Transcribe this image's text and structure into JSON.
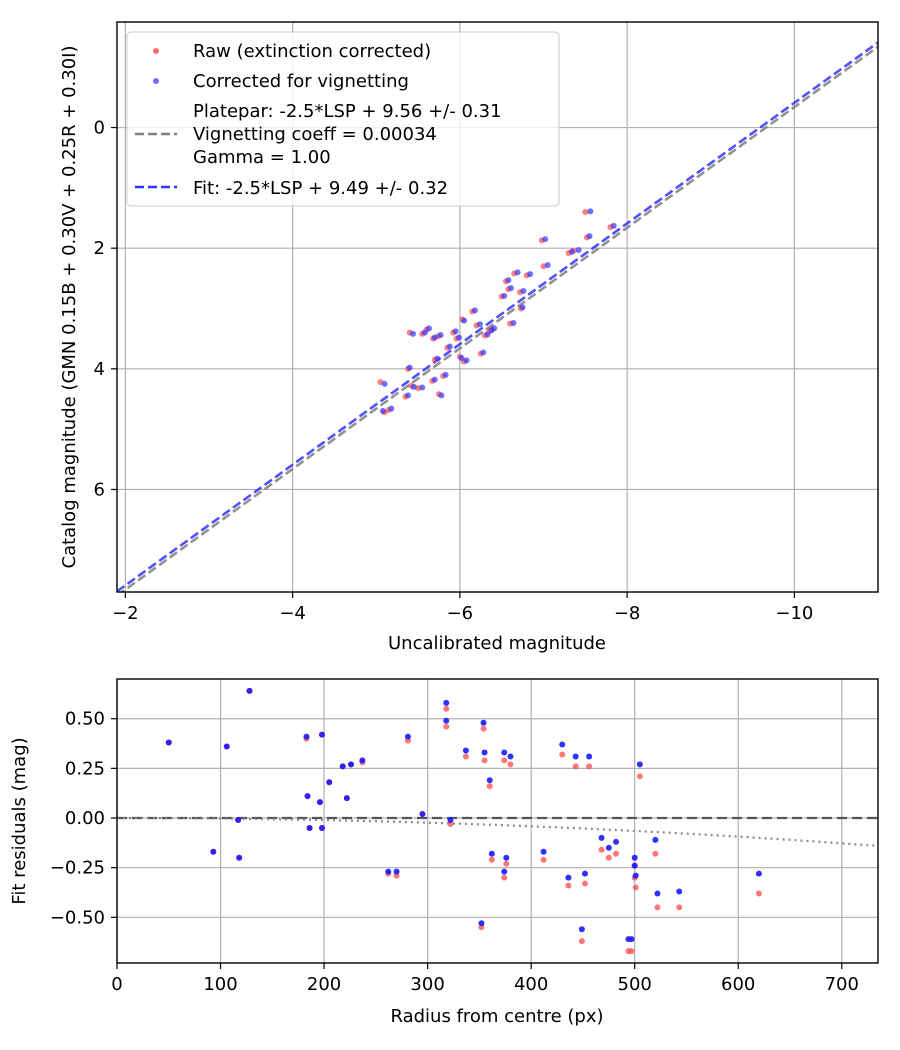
{
  "chart_data": [
    {
      "type": "scatter",
      "xlabel": "Uncalibrated magnitude",
      "ylabel": "Catalog magnitude (GMN 0.15B + 0.30V + 0.25R + 0.30I)",
      "xlim": [
        -1.9,
        -11.0
      ],
      "ylim": [
        7.7,
        -1.75
      ],
      "x_inverted": true,
      "y_inverted": true,
      "xticks": [
        -2,
        -4,
        -6,
        -8,
        -10
      ],
      "xtick_labels": [
        "−2",
        "−4",
        "−6",
        "−8",
        "−10"
      ],
      "yticks": [
        0,
        2,
        4,
        6
      ],
      "ytick_labels": [
        "0",
        "2",
        "4",
        "6"
      ],
      "grid": true,
      "legend_position": "top-left",
      "series": [
        {
          "name": "Raw (extinction corrected)",
          "kind": "scatter",
          "color": "#ff4a4a",
          "points": [
            [
              -5.05,
              4.22
            ],
            [
              -5.15,
              4.68
            ],
            [
              -5.1,
              4.72
            ],
            [
              -5.35,
              4.46
            ],
            [
              -5.42,
              4.28
            ],
            [
              -5.5,
              4.32
            ],
            [
              -5.38,
              4.0
            ],
            [
              -5.4,
              3.4
            ],
            [
              -5.55,
              3.42
            ],
            [
              -5.6,
              3.35
            ],
            [
              -5.68,
              3.5
            ],
            [
              -5.74,
              3.46
            ],
            [
              -5.67,
              4.2
            ],
            [
              -5.75,
              4.42
            ],
            [
              -5.8,
              4.12
            ],
            [
              -5.85,
              3.65
            ],
            [
              -5.7,
              3.85
            ],
            [
              -5.92,
              3.4
            ],
            [
              -5.96,
              3.5
            ],
            [
              -6.0,
              3.8
            ],
            [
              -6.05,
              3.88
            ],
            [
              -6.03,
              3.18
            ],
            [
              -6.15,
              3.05
            ],
            [
              -6.2,
              3.28
            ],
            [
              -6.25,
              3.75
            ],
            [
              -6.3,
              3.45
            ],
            [
              -6.35,
              3.38
            ],
            [
              -6.38,
              3.35
            ],
            [
              -6.5,
              2.8
            ],
            [
              -6.58,
              2.68
            ],
            [
              -6.55,
              2.55
            ],
            [
              -6.6,
              3.25
            ],
            [
              -6.65,
              2.42
            ],
            [
              -6.72,
              2.73
            ],
            [
              -6.73,
              3.0
            ],
            [
              -6.8,
              2.45
            ],
            [
              -6.98,
              1.87
            ],
            [
              -7.0,
              2.3
            ],
            [
              -7.3,
              2.08
            ],
            [
              -7.36,
              2.04
            ],
            [
              -7.5,
              1.4
            ],
            [
              -7.52,
              1.82
            ],
            [
              -7.8,
              1.65
            ]
          ]
        },
        {
          "name": "Corrected for vignetting",
          "kind": "scatter",
          "color": "#3333ff",
          "points": [
            [
              -5.1,
              4.25
            ],
            [
              -5.18,
              4.66
            ],
            [
              -5.08,
              4.7
            ],
            [
              -5.38,
              4.44
            ],
            [
              -5.45,
              4.3
            ],
            [
              -5.55,
              4.31
            ],
            [
              -5.4,
              3.98
            ],
            [
              -5.44,
              3.42
            ],
            [
              -5.58,
              3.4
            ],
            [
              -5.63,
              3.33
            ],
            [
              -5.7,
              3.48
            ],
            [
              -5.77,
              3.44
            ],
            [
              -5.7,
              4.18
            ],
            [
              -5.78,
              4.44
            ],
            [
              -5.83,
              4.1
            ],
            [
              -5.88,
              3.63
            ],
            [
              -5.73,
              3.83
            ],
            [
              -5.95,
              3.38
            ],
            [
              -5.99,
              3.48
            ],
            [
              -6.02,
              3.82
            ],
            [
              -6.08,
              3.86
            ],
            [
              -6.05,
              3.2
            ],
            [
              -6.18,
              3.03
            ],
            [
              -6.24,
              3.26
            ],
            [
              -6.28,
              3.73
            ],
            [
              -6.33,
              3.43
            ],
            [
              -6.38,
              3.36
            ],
            [
              -6.41,
              3.33
            ],
            [
              -6.53,
              2.79
            ],
            [
              -6.61,
              2.66
            ],
            [
              -6.58,
              2.53
            ],
            [
              -6.64,
              3.24
            ],
            [
              -6.69,
              2.4
            ],
            [
              -6.76,
              2.71
            ],
            [
              -6.75,
              2.98
            ],
            [
              -6.84,
              2.43
            ],
            [
              -7.02,
              1.85
            ],
            [
              -7.05,
              2.28
            ],
            [
              -7.34,
              2.06
            ],
            [
              -7.42,
              2.03
            ],
            [
              -7.56,
              1.39
            ],
            [
              -7.55,
              1.8
            ],
            [
              -7.84,
              1.63
            ]
          ]
        },
        {
          "name": "Platepar: -2.5*LSP + 9.56 +/- 0.31\nVignetting coeff = 0.00034\nGamma = 1.00",
          "kind": "line",
          "dashed": true,
          "color": "#7f7f7f",
          "slope": -2.5,
          "intercept": 9.56
        },
        {
          "name": "Fit: -2.5*LSP + 9.49 +/- 0.32",
          "kind": "line",
          "dashed": true,
          "color": "#3333ff",
          "slope": -2.5,
          "intercept": 9.49
        }
      ]
    },
    {
      "type": "scatter",
      "xlabel": "Radius from centre (px)",
      "ylabel": "Fit residuals (mag)",
      "xlim": [
        0,
        735
      ],
      "ylim": [
        -0.73,
        0.7
      ],
      "xticks": [
        0,
        100,
        200,
        300,
        400,
        500,
        600,
        700
      ],
      "xtick_labels": [
        "0",
        "100",
        "200",
        "300",
        "400",
        "500",
        "600",
        "700"
      ],
      "yticks": [
        0.5,
        0.25,
        0.0,
        -0.25,
        -0.5
      ],
      "ytick_labels": [
        "0.50",
        "0.25",
        "0.00",
        "−0.25",
        "−0.50"
      ],
      "grid": true,
      "series": [
        {
          "name": "Raw (extinction corrected)",
          "kind": "scatter",
          "color": "#ff4a4a",
          "points": [
            [
              50,
              0.38
            ],
            [
              93,
              -0.17
            ],
            [
              106,
              0.36
            ],
            [
              117,
              -0.01
            ],
            [
              118,
              -0.2
            ],
            [
              128,
              0.64
            ],
            [
              183,
              0.4
            ],
            [
              184,
              0.11
            ],
            [
              186,
              -0.05
            ],
            [
              196,
              0.08
            ],
            [
              198,
              0.42
            ],
            [
              198,
              -0.05
            ],
            [
              205,
              0.18
            ],
            [
              218,
              0.26
            ],
            [
              222,
              0.1
            ],
            [
              226,
              0.27
            ],
            [
              237,
              0.28
            ],
            [
              262,
              -0.28
            ],
            [
              270,
              -0.29
            ],
            [
              281,
              0.39
            ],
            [
              295,
              0.02
            ],
            [
              318,
              0.55
            ],
            [
              318,
              0.46
            ],
            [
              322,
              -0.03
            ],
            [
              337,
              0.31
            ],
            [
              352,
              -0.55
            ],
            [
              354,
              0.45
            ],
            [
              355,
              0.29
            ],
            [
              360,
              0.16
            ],
            [
              362,
              -0.21
            ],
            [
              374,
              0.29
            ],
            [
              374,
              -0.3
            ],
            [
              376,
              -0.23
            ],
            [
              380,
              0.27
            ],
            [
              412,
              -0.21
            ],
            [
              430,
              0.32
            ],
            [
              436,
              -0.34
            ],
            [
              443,
              0.26
            ],
            [
              449,
              -0.62
            ],
            [
              452,
              -0.33
            ],
            [
              456,
              0.26
            ],
            [
              468,
              -0.16
            ],
            [
              475,
              -0.2
            ],
            [
              482,
              -0.18
            ],
            [
              494,
              -0.67
            ],
            [
              497,
              -0.67
            ],
            [
              500,
              -0.3
            ],
            [
              500,
              -0.24
            ],
            [
              501,
              -0.35
            ],
            [
              505,
              0.21
            ],
            [
              520,
              -0.18
            ],
            [
              522,
              -0.45
            ],
            [
              543,
              -0.45
            ],
            [
              620,
              -0.38
            ]
          ]
        },
        {
          "name": "Corrected for vignetting",
          "kind": "scatter",
          "color": "#1a1aff",
          "points": [
            [
              50,
              0.38
            ],
            [
              93,
              -0.17
            ],
            [
              106,
              0.36
            ],
            [
              117,
              -0.01
            ],
            [
              118,
              -0.2
            ],
            [
              128,
              0.64
            ],
            [
              183,
              0.41
            ],
            [
              184,
              0.11
            ],
            [
              186,
              -0.05
            ],
            [
              196,
              0.08
            ],
            [
              198,
              0.42
            ],
            [
              198,
              -0.05
            ],
            [
              205,
              0.18
            ],
            [
              218,
              0.26
            ],
            [
              222,
              0.1
            ],
            [
              226,
              0.27
            ],
            [
              237,
              0.29
            ],
            [
              262,
              -0.27
            ],
            [
              270,
              -0.27
            ],
            [
              281,
              0.41
            ],
            [
              295,
              0.02
            ],
            [
              318,
              0.58
            ],
            [
              318,
              0.49
            ],
            [
              322,
              -0.01
            ],
            [
              337,
              0.34
            ],
            [
              352,
              -0.53
            ],
            [
              354,
              0.48
            ],
            [
              355,
              0.33
            ],
            [
              360,
              0.19
            ],
            [
              362,
              -0.18
            ],
            [
              374,
              0.33
            ],
            [
              374,
              -0.27
            ],
            [
              376,
              -0.2
            ],
            [
              380,
              0.31
            ],
            [
              412,
              -0.17
            ],
            [
              430,
              0.37
            ],
            [
              436,
              -0.3
            ],
            [
              443,
              0.31
            ],
            [
              449,
              -0.56
            ],
            [
              452,
              -0.28
            ],
            [
              456,
              0.31
            ],
            [
              468,
              -0.1
            ],
            [
              475,
              -0.15
            ],
            [
              482,
              -0.12
            ],
            [
              494,
              -0.61
            ],
            [
              497,
              -0.61
            ],
            [
              500,
              -0.24
            ],
            [
              500,
              -0.2
            ],
            [
              501,
              -0.29
            ],
            [
              505,
              0.27
            ],
            [
              520,
              -0.11
            ],
            [
              522,
              -0.38
            ],
            [
              543,
              -0.37
            ],
            [
              620,
              -0.28
            ]
          ]
        }
      ]
    }
  ]
}
